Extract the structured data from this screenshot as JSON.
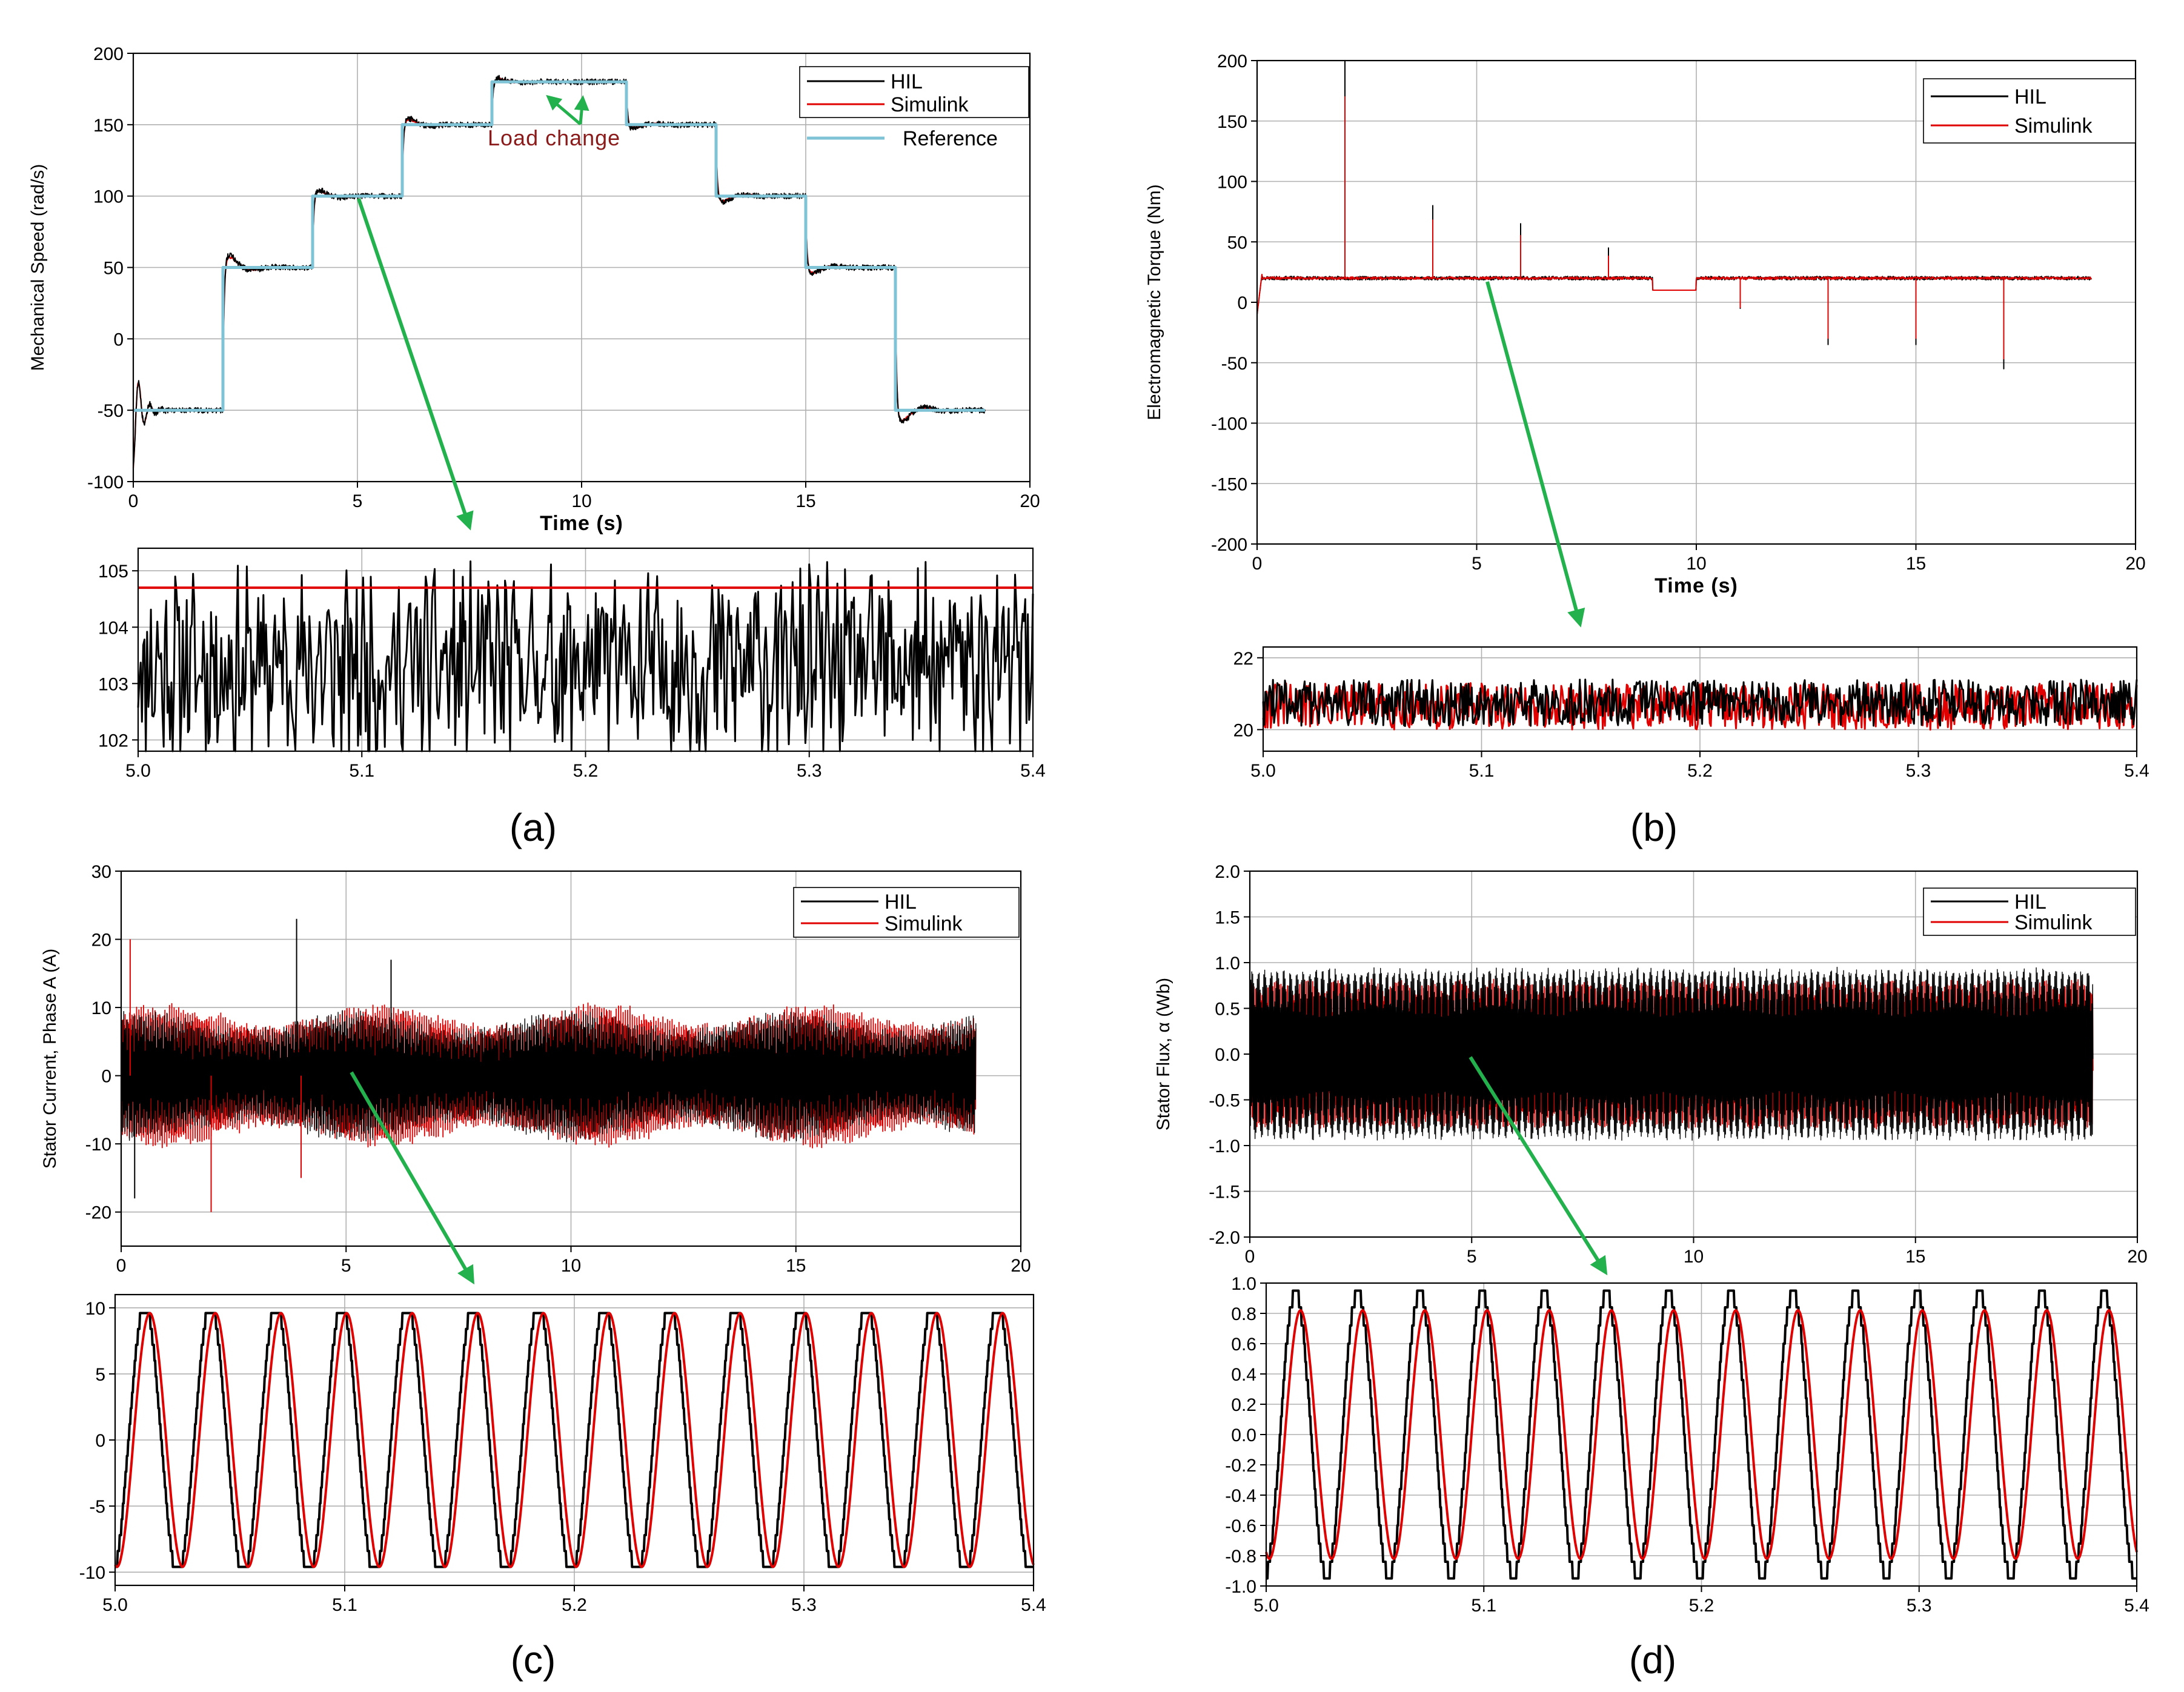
{
  "figure": {
    "panel_labels": [
      "(a)",
      "(b)",
      "(c)",
      "(d)"
    ]
  },
  "colors": {
    "hil": "#000000",
    "simulink": "#e00000",
    "reference": "#7fc4d6",
    "grid": "#b0b0b0",
    "arrow": "#22b14c",
    "annotation": "#8b1a1a"
  },
  "chart_data": [
    {
      "id": "a-main",
      "type": "line",
      "ylabel": "Mechanical Speed (rad/s)",
      "xlabel": "Time (s)",
      "xlim": [
        0,
        20
      ],
      "ylim": [
        -100,
        200
      ],
      "xticks": [
        "0",
        "5",
        "10",
        "15",
        "20"
      ],
      "yticks": [
        "-100",
        "-50",
        "0",
        "50",
        "100",
        "150",
        "200"
      ],
      "legend": [
        "HIL",
        "Simulink",
        "Reference"
      ],
      "annotation": "Load change",
      "series": [
        {
          "name": "Reference",
          "steps_t": [
            0,
            2,
            4,
            6,
            8,
            11,
            13,
            15,
            17,
            19
          ],
          "steps_v": [
            -50,
            50,
            100,
            150,
            180,
            150,
            100,
            50,
            -50,
            -50
          ]
        },
        {
          "name": "HIL",
          "note": "tracks reference with overshoot at each step and noise"
        },
        {
          "name": "Simulink",
          "note": "tracks reference"
        }
      ]
    },
    {
      "id": "a-zoom",
      "type": "line",
      "xlim": [
        5.0,
        5.4
      ],
      "ylim": [
        101.8,
        105.4
      ],
      "xticks": [
        "5.0",
        "5.1",
        "5.2",
        "5.3",
        "5.4"
      ],
      "yticks": [
        "102",
        "103",
        "104",
        "105"
      ],
      "series": [
        {
          "name": "Simulink",
          "constant": 104.7
        },
        {
          "name": "HIL",
          "mean": 103.3,
          "range": [
            101.8,
            105.4
          ]
        }
      ]
    },
    {
      "id": "b-main",
      "type": "line",
      "ylabel": "Electromagnetic Torque (Nm)",
      "xlabel": "Time (s)",
      "xlim": [
        0,
        20
      ],
      "ylim": [
        -200,
        200
      ],
      "xticks": [
        "0",
        "5",
        "10",
        "15",
        "20"
      ],
      "yticks": [
        "-200",
        "-150",
        "-100",
        "-50",
        "0",
        "50",
        "100",
        "150",
        "200"
      ],
      "legend": [
        "HIL",
        "Simulink"
      ],
      "series": [
        {
          "name": "HIL",
          "baseline": 20,
          "spikes_t": [
            2,
            4,
            6,
            8,
            11,
            13,
            15,
            17
          ]
        },
        {
          "name": "Simulink",
          "baseline": 20
        }
      ]
    },
    {
      "id": "b-zoom",
      "type": "line",
      "xlim": [
        5.0,
        5.4
      ],
      "ylim": [
        19.4,
        22.3
      ],
      "xticks": [
        "5.0",
        "5.1",
        "5.2",
        "5.3",
        "5.4"
      ],
      "yticks": [
        "20",
        "22"
      ],
      "series": [
        {
          "name": "HIL",
          "mean": 20.75
        },
        {
          "name": "Simulink",
          "mean": 20.65
        }
      ]
    },
    {
      "id": "c-main",
      "type": "line",
      "ylabel": "Stator Current, Phase A (A)",
      "xlim": [
        0,
        20
      ],
      "ylim": [
        -25,
        30
      ],
      "xticks": [
        "0",
        "5",
        "10",
        "15",
        "20"
      ],
      "yticks": [
        "-20",
        "-10",
        "0",
        "10",
        "20",
        "30"
      ],
      "legend": [
        "HIL",
        "Simulink"
      ],
      "series": [
        {
          "name": "HIL",
          "amplitude": 9
        },
        {
          "name": "Simulink",
          "amplitude": 10
        }
      ]
    },
    {
      "id": "c-zoom",
      "type": "line",
      "xlim": [
        5.0,
        5.4
      ],
      "ylim": [
        -11,
        11
      ],
      "xticks": [
        "5.0",
        "5.1",
        "5.2",
        "5.3",
        "5.4"
      ],
      "yticks": [
        "-10",
        "-5",
        "0",
        "5",
        "10"
      ],
      "series": [
        {
          "name": "HIL",
          "amplitude": 10.2,
          "cycles": 14
        },
        {
          "name": "Simulink",
          "amplitude": 9.6,
          "cycles": 14
        }
      ]
    },
    {
      "id": "d-main",
      "type": "line",
      "ylabel": "Stator Flux, α (Wb)",
      "xlim": [
        0,
        20
      ],
      "ylim": [
        -2.0,
        2.0
      ],
      "xticks": [
        "0",
        "5",
        "10",
        "15",
        "20"
      ],
      "yticks": [
        "-2.0",
        "-1.5",
        "-1.0",
        "-0.5",
        "0.0",
        "0.5",
        "1.0",
        "1.5",
        "2.0"
      ],
      "legend": [
        "HIL",
        "Simulink"
      ],
      "series": [
        {
          "name": "HIL",
          "amplitude": 0.95
        },
        {
          "name": "Simulink",
          "amplitude": 0.82
        }
      ]
    },
    {
      "id": "d-zoom",
      "type": "line",
      "xlim": [
        5.0,
        5.4
      ],
      "ylim": [
        -1.0,
        1.0
      ],
      "xticks": [
        "5.0",
        "5.1",
        "5.2",
        "5.3",
        "5.4"
      ],
      "yticks": [
        "-1.0",
        "-0.8",
        "-0.6",
        "-0.4",
        "-0.2",
        "0.0",
        "0.2",
        "0.4",
        "0.6",
        "0.8",
        "1.0"
      ],
      "series": [
        {
          "name": "HIL",
          "amplitude": 0.95,
          "cycles": 14
        },
        {
          "name": "Simulink",
          "amplitude": 0.82,
          "cycles": 14
        }
      ]
    }
  ]
}
